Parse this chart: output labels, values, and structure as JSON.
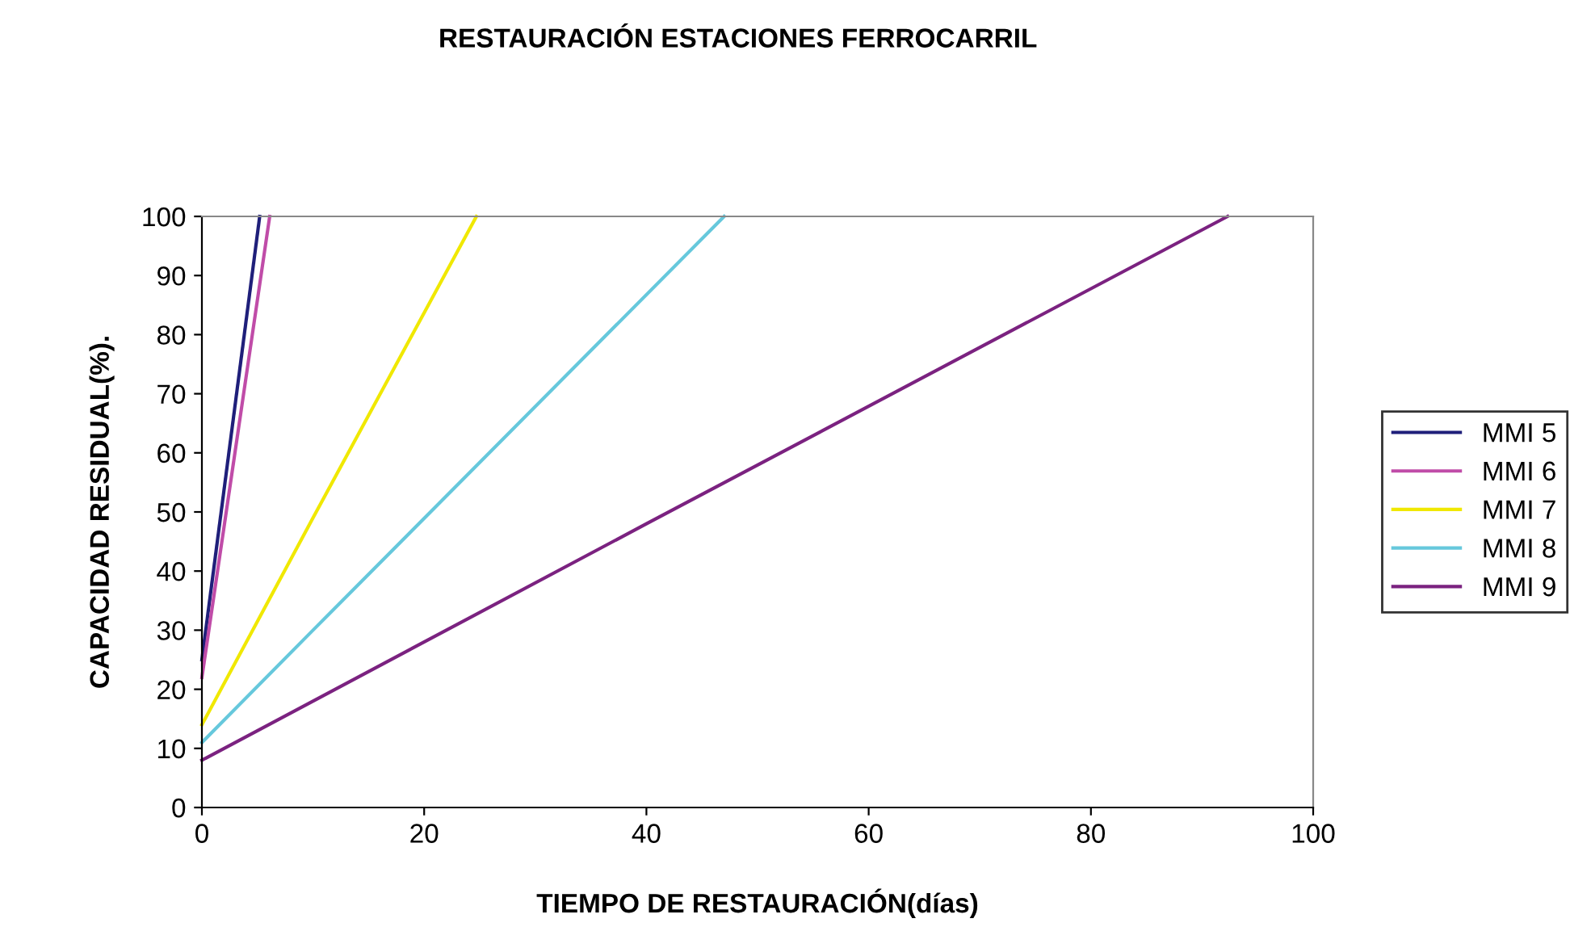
{
  "chart_data": {
    "type": "line",
    "title": "RESTAURACIÓN ESTACIONES FERROCARRIL",
    "xlabel": "TIEMPO DE RESTAURACIÓN(días)",
    "ylabel": "CAPACIDAD RESIDUAL(%).",
    "series": [
      {
        "name": "MMI 5",
        "color": "#1f1f7a",
        "x": [
          0,
          5.2
        ],
        "values": [
          25,
          100
        ]
      },
      {
        "name": "MMI 6",
        "color": "#c04ca8",
        "x": [
          0,
          6.1
        ],
        "values": [
          22,
          100
        ]
      },
      {
        "name": "MMI 7",
        "color": "#f0e800",
        "x": [
          0,
          10,
          24.7
        ],
        "values": [
          14,
          49,
          100
        ]
      },
      {
        "name": "MMI 8",
        "color": "#66c8dc",
        "x": [
          0,
          10,
          47
        ],
        "values": [
          11,
          30,
          100
        ]
      },
      {
        "name": "MMI 9",
        "color": "#7b2280",
        "x": [
          0,
          40,
          92.3
        ],
        "values": [
          8,
          48,
          100
        ]
      }
    ],
    "xlim": [
      0,
      100
    ],
    "xticks": [
      0,
      20,
      40,
      60,
      80,
      100
    ],
    "ylim": [
      0,
      100
    ],
    "yticks": [
      0,
      10,
      20,
      30,
      40,
      50,
      60,
      70,
      80,
      90,
      100
    ],
    "grid": false,
    "legend": "right",
    "marker": "none",
    "line_style": "solid"
  }
}
